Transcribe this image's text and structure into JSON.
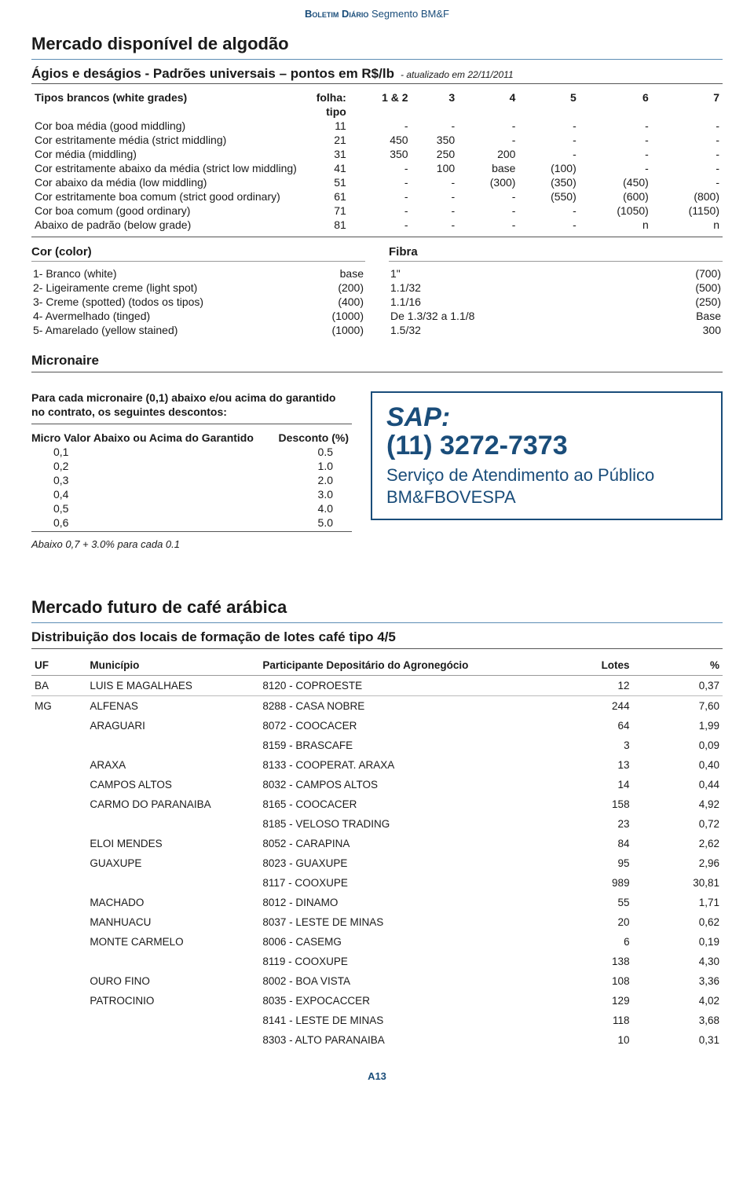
{
  "colors": {
    "brand": "#1a4d7a",
    "rule": "#5d8db5",
    "text": "#1a1a1a",
    "background": "#ffffff",
    "table_border": "#999999"
  },
  "header": {
    "bold": "Boletim Diário",
    "rest": " Segmento BM&F"
  },
  "cotton": {
    "title": "Mercado disponível de algodão",
    "subtitle": "Ágios e deságios - Padrões universais – pontos em R$/lb",
    "updated": "- atualizado em 22/11/2011",
    "grades_header": {
      "label": "Tipos brancos (white grades)",
      "folha": "folha:",
      "cols": [
        "1 & 2",
        "3",
        "4",
        "5",
        "6",
        "7"
      ],
      "tipo": "tipo"
    },
    "grades_rows": [
      {
        "label": "Cor boa média (good middling)",
        "tipo": "11",
        "v": [
          "-",
          "-",
          "-",
          "-",
          "-",
          "-"
        ]
      },
      {
        "label": "Cor estritamente média (strict middling)",
        "tipo": "21",
        "v": [
          "450",
          "350",
          "-",
          "-",
          "-",
          "-"
        ]
      },
      {
        "label": "Cor média (middling)",
        "tipo": "31",
        "v": [
          "350",
          "250",
          "200",
          "-",
          "-",
          "-"
        ]
      },
      {
        "label": "Cor estritamente abaixo da média (strict low middling)",
        "tipo": "41",
        "v": [
          "-",
          "100",
          "base",
          "(100)",
          "-",
          "-"
        ]
      },
      {
        "label": "Cor abaixo da média (low middling)",
        "tipo": "51",
        "v": [
          "-",
          "-",
          "(300)",
          "(350)",
          "(450)",
          "-"
        ]
      },
      {
        "label": "Cor estritamente boa comum (strict good ordinary)",
        "tipo": "61",
        "v": [
          "-",
          "-",
          "-",
          "(550)",
          "(600)",
          "(800)"
        ]
      },
      {
        "label": "Cor boa comum (good ordinary)",
        "tipo": "71",
        "v": [
          "-",
          "-",
          "-",
          "-",
          "(1050)",
          "(1150)"
        ]
      },
      {
        "label": "Abaixo de padrão (below grade)",
        "tipo": "81",
        "v": [
          "-",
          "-",
          "-",
          "-",
          "n",
          "n"
        ]
      }
    ],
    "cor": {
      "heading": "Cor (color)",
      "rows": [
        {
          "label": "1- Branco (white)",
          "val": "base"
        },
        {
          "label": "2- Ligeiramente creme (light spot)",
          "val": "(200)"
        },
        {
          "label": "3- Creme (spotted) (todos os tipos)",
          "val": "(400)"
        },
        {
          "label": "4- Avermelhado (tinged)",
          "val": "(1000)"
        },
        {
          "label": "5- Amarelado (yellow stained)",
          "val": "(1000)"
        }
      ]
    },
    "fibra": {
      "heading": "Fibra",
      "rows": [
        {
          "label": "1\"",
          "val": "(700)"
        },
        {
          "label": "1.1/32",
          "val": "(500)"
        },
        {
          "label": "1.1/16",
          "val": "(250)"
        },
        {
          "label": "De 1.3/32 a 1.1/8",
          "val": "Base"
        },
        {
          "label": "1.5/32",
          "val": "300"
        }
      ]
    },
    "micronaire": {
      "heading": "Micronaire",
      "note": "Para cada micronaire (0,1) abaixo e/ou acima do garantido no contrato, os seguintes descontos:",
      "col1": "Micro Valor Abaixo ou Acima do Garantido",
      "col2": "Desconto (%)",
      "rows": [
        {
          "m": "0,1",
          "d": "0.5"
        },
        {
          "m": "0,2",
          "d": "1.0"
        },
        {
          "m": "0,3",
          "d": "2.0"
        },
        {
          "m": "0,4",
          "d": "3.0"
        },
        {
          "m": "0,5",
          "d": "4.0"
        },
        {
          "m": "0,6",
          "d": "5.0"
        }
      ],
      "footnote": "Abaixo 0,7 + 3.0% para cada 0.1"
    },
    "sap": {
      "title": "SAP:",
      "phone": "(11) 3272-7373",
      "desc": "Serviço de Atendimento ao Público BM&FBOVESPA"
    }
  },
  "coffee": {
    "title": "Mercado futuro de café arábica",
    "subtitle": "Distribuição dos locais de formação de lotes café tipo 4/5",
    "columns": [
      "UF",
      "Município",
      "Participante Depositário do Agronegócio",
      "Lotes",
      "%"
    ],
    "rows": [
      {
        "uf": "BA",
        "mun": "LUIS E MAGALHAES",
        "dep": "8120 - COPROESTE",
        "lotes": "12",
        "pct": "0,37",
        "sep": true
      },
      {
        "uf": "MG",
        "mun": "ALFENAS",
        "dep": "8288 - CASA NOBRE",
        "lotes": "244",
        "pct": "7,60",
        "sep": true
      },
      {
        "uf": "",
        "mun": "ARAGUARI",
        "dep": "8072 - COOCACER",
        "lotes": "64",
        "pct": "1,99"
      },
      {
        "uf": "",
        "mun": "",
        "dep": "8159 - BRASCAFE",
        "lotes": "3",
        "pct": "0,09"
      },
      {
        "uf": "",
        "mun": "ARAXA",
        "dep": "8133 - COOPERAT. ARAXA",
        "lotes": "13",
        "pct": "0,40"
      },
      {
        "uf": "",
        "mun": "CAMPOS ALTOS",
        "dep": "8032 - CAMPOS ALTOS",
        "lotes": "14",
        "pct": "0,44"
      },
      {
        "uf": "",
        "mun": "CARMO DO PARANAIBA",
        "dep": "8165 - COOCACER",
        "lotes": "158",
        "pct": "4,92"
      },
      {
        "uf": "",
        "mun": "",
        "dep": "8185 - VELOSO TRADING",
        "lotes": "23",
        "pct": "0,72"
      },
      {
        "uf": "",
        "mun": "ELOI MENDES",
        "dep": "8052 - CARAPINA",
        "lotes": "84",
        "pct": "2,62"
      },
      {
        "uf": "",
        "mun": "GUAXUPE",
        "dep": "8023 - GUAXUPE",
        "lotes": "95",
        "pct": "2,96"
      },
      {
        "uf": "",
        "mun": "",
        "dep": "8117 - COOXUPE",
        "lotes": "989",
        "pct": "30,81"
      },
      {
        "uf": "",
        "mun": "MACHADO",
        "dep": "8012 - DINAMO",
        "lotes": "55",
        "pct": "1,71"
      },
      {
        "uf": "",
        "mun": "MANHUACU",
        "dep": "8037 - LESTE DE MINAS",
        "lotes": "20",
        "pct": "0,62"
      },
      {
        "uf": "",
        "mun": "MONTE CARMELO",
        "dep": "8006 - CASEMG",
        "lotes": "6",
        "pct": "0,19"
      },
      {
        "uf": "",
        "mun": "",
        "dep": "8119 - COOXUPE",
        "lotes": "138",
        "pct": "4,30"
      },
      {
        "uf": "",
        "mun": "OURO FINO",
        "dep": "8002 - BOA VISTA",
        "lotes": "108",
        "pct": "3,36"
      },
      {
        "uf": "",
        "mun": "PATROCINIO",
        "dep": "8035 - EXPOCACCER",
        "lotes": "129",
        "pct": "4,02"
      },
      {
        "uf": "",
        "mun": "",
        "dep": "8141 - LESTE DE MINAS",
        "lotes": "118",
        "pct": "3,68"
      },
      {
        "uf": "",
        "mun": "",
        "dep": "8303 - ALTO PARANAIBA",
        "lotes": "10",
        "pct": "0,31"
      }
    ]
  },
  "page_number": "A13"
}
